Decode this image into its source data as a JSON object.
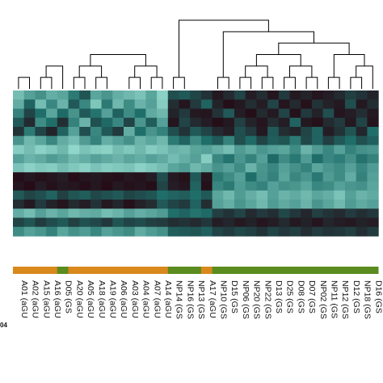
{
  "chart_data": {
    "type": "heatmap",
    "title": "",
    "xlabel": "",
    "ylabel": "",
    "colors": {
      "low": "#25040f",
      "mid": "#1f6e6a",
      "high": "#a6eadc",
      "group_agu": "#d9881c",
      "group_gs": "#5a8c1f",
      "dendrogram": "#000000"
    },
    "columns": [
      {
        "id": "A01",
        "group": "aGU",
        "label": "A01 (aGU"
      },
      {
        "id": "A02",
        "group": "aGU",
        "label": "A02 (aGU"
      },
      {
        "id": "A15",
        "group": "aGU",
        "label": "A15 (aGU"
      },
      {
        "id": "A16",
        "group": "aGU",
        "label": "A16 (aGU"
      },
      {
        "id": "D05",
        "group": "GS",
        "label": "D05 (GS"
      },
      {
        "id": "A20",
        "group": "aGU",
        "label": "A20 (aGU"
      },
      {
        "id": "A05",
        "group": "aGU",
        "label": "A05 (aGU"
      },
      {
        "id": "A18",
        "group": "aGU",
        "label": "A18 (aGU"
      },
      {
        "id": "A19",
        "group": "aGU",
        "label": "A19 (aGU"
      },
      {
        "id": "A06",
        "group": "aGU",
        "label": "A06 (aGU"
      },
      {
        "id": "A03",
        "group": "aGU",
        "label": "A03 (aGU"
      },
      {
        "id": "A04",
        "group": "aGU",
        "label": "A04 (aGU"
      },
      {
        "id": "A07",
        "group": "aGU",
        "label": "A07 (aGU"
      },
      {
        "id": "A14",
        "group": "aGU",
        "label": "A14 (aGU"
      },
      {
        "id": "NP14",
        "group": "GS",
        "label": "NP14 (GS"
      },
      {
        "id": "NP16",
        "group": "GS",
        "label": "NP16 (GS"
      },
      {
        "id": "NP13",
        "group": "GS",
        "label": "NP13 (GS"
      },
      {
        "id": "A17",
        "group": "aGU",
        "label": "A17 (aGU"
      },
      {
        "id": "NP10",
        "group": "GS",
        "label": "NP10 (GS"
      },
      {
        "id": "D15",
        "group": "GS",
        "label": "D15 (GS"
      },
      {
        "id": "NP06",
        "group": "GS",
        "label": "NP06 (GS"
      },
      {
        "id": "NP20",
        "group": "GS",
        "label": "NP20 (GS"
      },
      {
        "id": "NP22",
        "group": "GS",
        "label": "NP22 (GS"
      },
      {
        "id": "D13",
        "group": "GS",
        "label": "D13 (GS"
      },
      {
        "id": "D25",
        "group": "GS",
        "label": "D25 (GS"
      },
      {
        "id": "D08",
        "group": "GS",
        "label": "D08 (GS"
      },
      {
        "id": "D07",
        "group": "GS",
        "label": "D07 (GS"
      },
      {
        "id": "NP02",
        "group": "GS",
        "label": "NP02 (GS"
      },
      {
        "id": "NP11",
        "group": "GS",
        "label": "NP11 (GS"
      },
      {
        "id": "NP12",
        "group": "GS",
        "label": "NP12 (GS"
      },
      {
        "id": "D12",
        "group": "GS",
        "label": "D12 (GS"
      },
      {
        "id": "NP18",
        "group": "GS",
        "label": "NP18 (GS"
      },
      {
        "id": "D16",
        "group": "GS",
        "label": "D16 (GS"
      }
    ],
    "rows": 16,
    "value_scale": [
      0,
      1
    ],
    "values": [
      [
        0.82,
        0.7,
        0.64,
        0.76,
        0.72,
        0.55,
        0.38,
        0.72,
        0.66,
        0.76,
        0.8,
        0.84,
        0.72,
        0.9,
        0.35,
        0.4,
        0.3,
        0.22,
        0.1,
        0.18,
        0.3,
        0.12,
        0.2,
        0.08,
        0.25,
        0.1,
        0.15,
        0.08,
        0.12,
        0.18,
        0.28,
        0.22,
        0.15
      ],
      [
        0.75,
        0.45,
        0.82,
        0.6,
        0.78,
        0.4,
        0.6,
        0.85,
        0.55,
        0.8,
        0.62,
        0.78,
        0.7,
        0.88,
        0.2,
        0.08,
        0.25,
        0.45,
        0.15,
        0.05,
        0.1,
        0.2,
        0.12,
        0.3,
        0.08,
        0.18,
        0.06,
        0.22,
        0.14,
        0.1,
        0.35,
        0.1,
        0.2
      ],
      [
        0.58,
        0.3,
        0.5,
        0.72,
        0.48,
        0.65,
        0.4,
        0.52,
        0.7,
        0.44,
        0.62,
        0.5,
        0.74,
        0.8,
        0.15,
        0.25,
        0.1,
        0.08,
        0.22,
        0.4,
        0.12,
        0.05,
        0.18,
        0.1,
        0.3,
        0.06,
        0.25,
        0.14,
        0.35,
        0.08,
        0.12,
        0.2,
        0.1
      ],
      [
        0.4,
        0.18,
        0.62,
        0.5,
        0.2,
        0.58,
        0.78,
        0.36,
        0.48,
        0.6,
        0.3,
        0.66,
        0.42,
        0.7,
        0.08,
        0.3,
        0.18,
        0.12,
        0.05,
        0.1,
        0.28,
        0.15,
        0.08,
        0.2,
        0.12,
        0.45,
        0.1,
        0.06,
        0.18,
        0.25,
        0.1,
        0.3,
        0.08
      ],
      [
        0.22,
        0.55,
        0.3,
        0.15,
        0.45,
        0.7,
        0.35,
        0.6,
        0.4,
        0.25,
        0.75,
        0.5,
        0.65,
        0.58,
        0.35,
        0.22,
        0.4,
        0.3,
        0.18,
        0.12,
        0.35,
        0.25,
        0.1,
        0.4,
        0.2,
        0.15,
        0.3,
        0.45,
        0.12,
        0.22,
        0.38,
        0.16,
        0.5
      ],
      [
        0.65,
        0.8,
        0.72,
        0.6,
        0.75,
        0.82,
        0.68,
        0.58,
        0.76,
        0.7,
        0.64,
        0.78,
        0.72,
        0.8,
        0.55,
        0.45,
        0.62,
        0.5,
        0.4,
        0.58,
        0.35,
        0.48,
        0.3,
        0.42,
        0.38,
        0.55,
        0.32,
        0.45,
        0.28,
        0.4,
        0.5,
        0.36,
        0.44
      ],
      [
        0.88,
        0.82,
        0.9,
        0.86,
        0.8,
        0.92,
        0.84,
        0.88,
        0.9,
        0.82,
        0.86,
        0.8,
        0.88,
        0.84,
        0.78,
        0.8,
        0.72,
        0.7,
        0.76,
        0.82,
        0.68,
        0.74,
        0.66,
        0.7,
        0.72,
        0.62,
        0.78,
        0.68,
        0.6,
        0.7,
        0.58,
        0.64,
        0.66
      ],
      [
        0.7,
        0.78,
        0.74,
        0.68,
        0.72,
        0.8,
        0.76,
        0.7,
        0.74,
        0.78,
        0.72,
        0.76,
        0.7,
        0.74,
        0.82,
        0.76,
        0.7,
        0.88,
        0.6,
        0.52,
        0.66,
        0.58,
        0.7,
        0.48,
        0.62,
        0.54,
        0.68,
        0.5,
        0.6,
        0.56,
        0.64,
        0.52,
        0.58
      ],
      [
        0.84,
        0.9,
        0.86,
        0.88,
        0.82,
        0.86,
        0.9,
        0.84,
        0.88,
        0.86,
        0.84,
        0.9,
        0.86,
        0.82,
        0.72,
        0.68,
        0.8,
        0.74,
        0.65,
        0.7,
        0.62,
        0.78,
        0.66,
        0.6,
        0.7,
        0.64,
        0.58,
        0.72,
        0.66,
        0.62,
        0.7,
        0.6,
        0.68
      ],
      [
        0.05,
        0.1,
        0.06,
        0.08,
        0.12,
        0.04,
        0.08,
        0.1,
        0.06,
        0.05,
        0.09,
        0.07,
        0.12,
        0.35,
        0.1,
        0.06,
        0.4,
        0.08,
        0.55,
        0.62,
        0.7,
        0.5,
        0.65,
        0.58,
        0.72,
        0.6,
        0.66,
        0.54,
        0.68,
        0.62,
        0.75,
        0.58,
        0.7
      ],
      [
        0.08,
        0.04,
        0.12,
        0.06,
        0.1,
        0.08,
        0.05,
        0.09,
        0.04,
        0.1,
        0.06,
        0.08,
        0.05,
        0.3,
        0.12,
        0.08,
        0.45,
        0.06,
        0.6,
        0.55,
        0.68,
        0.62,
        0.58,
        0.7,
        0.64,
        0.66,
        0.72,
        0.6,
        0.62,
        0.7,
        0.66,
        0.64,
        0.72
      ],
      [
        0.4,
        0.3,
        0.35,
        0.45,
        0.28,
        0.38,
        0.42,
        0.32,
        0.36,
        0.4,
        0.3,
        0.34,
        0.38,
        0.5,
        0.45,
        0.42,
        0.5,
        0.4,
        0.72,
        0.8,
        0.68,
        0.76,
        0.82,
        0.7,
        0.78,
        0.74,
        0.8,
        0.72,
        0.76,
        0.84,
        0.7,
        0.78,
        0.74
      ],
      [
        0.2,
        0.1,
        0.25,
        0.15,
        0.08,
        0.18,
        0.12,
        0.22,
        0.1,
        0.16,
        0.06,
        0.14,
        0.2,
        0.4,
        0.3,
        0.25,
        0.45,
        0.2,
        0.7,
        0.76,
        0.66,
        0.72,
        0.8,
        0.68,
        0.74,
        0.7,
        0.78,
        0.66,
        0.72,
        0.8,
        0.68,
        0.74,
        0.7
      ],
      [
        0.75,
        0.82,
        0.7,
        0.78,
        0.72,
        0.8,
        0.76,
        0.74,
        0.82,
        0.78,
        0.7,
        0.76,
        0.72,
        0.68,
        0.5,
        0.45,
        0.52,
        0.48,
        0.28,
        0.22,
        0.3,
        0.18,
        0.25,
        0.2,
        0.32,
        0.24,
        0.16,
        0.28,
        0.22,
        0.18,
        0.26,
        0.2,
        0.24
      ],
      [
        0.3,
        0.38,
        0.26,
        0.34,
        0.4,
        0.28,
        0.36,
        0.32,
        0.24,
        0.38,
        0.3,
        0.34,
        0.28,
        0.26,
        0.2,
        0.22,
        0.18,
        0.24,
        0.12,
        0.16,
        0.1,
        0.14,
        0.08,
        0.12,
        0.18,
        0.1,
        0.14,
        0.08,
        0.16,
        0.12,
        0.1,
        0.14,
        0.12
      ],
      [
        0.62,
        0.7,
        0.66,
        0.58,
        0.72,
        0.64,
        0.68,
        0.6,
        0.7,
        0.66,
        0.62,
        0.74,
        0.68,
        0.64,
        0.42,
        0.4,
        0.38,
        0.44,
        0.3,
        0.26,
        0.32,
        0.28,
        0.22,
        0.3,
        0.24,
        0.28,
        0.2,
        0.26,
        0.22,
        0.24,
        0.28,
        0.2,
        0.26
      ]
    ],
    "dendrogram": [
      [
        0,
        1
      ],
      [
        2,
        3
      ],
      [
        34,
        4
      ],
      [
        5,
        6
      ],
      [
        7,
        8
      ],
      [
        38,
        9
      ],
      [
        10,
        11
      ],
      [
        12,
        13
      ],
      [
        36,
        37
      ],
      [
        39,
        40
      ],
      [
        41,
        42
      ],
      [
        43,
        44
      ],
      [
        35,
        45
      ],
      [
        14,
        15
      ],
      [
        47,
        16
      ],
      [
        48,
        17
      ],
      [
        18,
        19
      ],
      [
        20,
        21
      ],
      [
        22,
        23
      ],
      [
        24,
        25
      ],
      [
        26,
        27
      ],
      [
        28,
        29
      ],
      [
        30,
        31
      ],
      [
        55,
        32
      ],
      [
        50,
        51
      ],
      [
        52,
        53
      ],
      [
        54,
        56
      ],
      [
        57,
        58
      ],
      [
        59,
        60
      ],
      [
        49,
        61
      ],
      [
        46,
        62
      ]
    ],
    "corner_label": "04"
  }
}
